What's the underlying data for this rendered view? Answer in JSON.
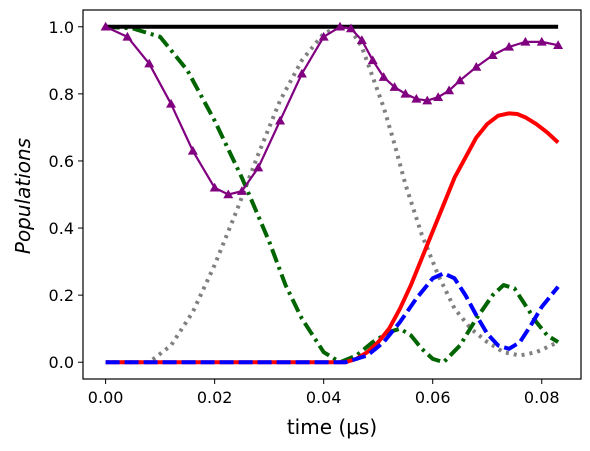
{
  "chart_data": {
    "type": "line",
    "title": "",
    "xlabel": "time (μs)",
    "ylabel": "Populations",
    "xlim": [
      -0.00415,
      0.0872
    ],
    "ylim": [
      -0.05,
      1.05
    ],
    "xticks": [
      "0.00",
      "0.02",
      "0.04",
      "0.06",
      "0.08"
    ],
    "xtick_values": [
      0.0,
      0.02,
      0.04,
      0.06,
      0.08
    ],
    "yticks": [
      "0.0",
      "0.2",
      "0.4",
      "0.6",
      "0.8",
      "1.0"
    ],
    "ytick_values": [
      0.0,
      0.2,
      0.4,
      0.6,
      0.8,
      1.0
    ],
    "grid": false,
    "legend": false,
    "series": [
      {
        "color": "#000000",
        "style": "solid",
        "x": [
          0.0,
          0.083
        ],
        "y": [
          1.0,
          1.0
        ]
      },
      {
        "color": "#ff0000",
        "style": "solid",
        "x": [
          0.0,
          0.044,
          0.046,
          0.048,
          0.05,
          0.052,
          0.054,
          0.056,
          0.058,
          0.06,
          0.062,
          0.064,
          0.066,
          0.068,
          0.07,
          0.072,
          0.074,
          0.0755,
          0.077,
          0.079,
          0.081,
          0.083
        ],
        "y": [
          0.0,
          0.0,
          0.01,
          0.03,
          0.06,
          0.1,
          0.16,
          0.23,
          0.31,
          0.39,
          0.47,
          0.55,
          0.61,
          0.67,
          0.71,
          0.735,
          0.742,
          0.74,
          0.73,
          0.71,
          0.685,
          0.655
        ]
      },
      {
        "color": "#0000ff",
        "style": "dashed",
        "x": [
          0.0,
          0.044,
          0.048,
          0.051,
          0.054,
          0.057,
          0.06,
          0.062,
          0.064,
          0.066,
          0.068,
          0.07,
          0.072,
          0.074,
          0.076,
          0.078,
          0.08,
          0.083
        ],
        "y": [
          0.0,
          0.0,
          0.02,
          0.06,
          0.12,
          0.19,
          0.25,
          0.265,
          0.25,
          0.2,
          0.14,
          0.085,
          0.05,
          0.04,
          0.06,
          0.11,
          0.165,
          0.225
        ]
      },
      {
        "color": "#006400",
        "style": "dashdot",
        "x": [
          0.0,
          0.005,
          0.01,
          0.015,
          0.02,
          0.025,
          0.03,
          0.033,
          0.036,
          0.04,
          0.043,
          0.046,
          0.049,
          0.052,
          0.054,
          0.056,
          0.058,
          0.06,
          0.062,
          0.065,
          0.068,
          0.071,
          0.073,
          0.075,
          0.077,
          0.079,
          0.081,
          0.083
        ],
        "y": [
          1.0,
          0.995,
          0.97,
          0.87,
          0.72,
          0.55,
          0.36,
          0.23,
          0.13,
          0.03,
          0.0,
          0.02,
          0.06,
          0.09,
          0.1,
          0.08,
          0.04,
          0.01,
          0.0,
          0.05,
          0.13,
          0.2,
          0.23,
          0.22,
          0.17,
          0.12,
          0.08,
          0.06
        ]
      },
      {
        "color": "#808080",
        "style": "dotted",
        "x": [
          0.0,
          0.008,
          0.012,
          0.016,
          0.02,
          0.024,
          0.028,
          0.032,
          0.036,
          0.04,
          0.043,
          0.045,
          0.047,
          0.049,
          0.051,
          0.053,
          0.055,
          0.058,
          0.061,
          0.064,
          0.067,
          0.07,
          0.073,
          0.076,
          0.079,
          0.083
        ],
        "y": [
          0.0,
          0.0,
          0.05,
          0.15,
          0.29,
          0.45,
          0.62,
          0.78,
          0.9,
          0.98,
          1.0,
          0.99,
          0.94,
          0.85,
          0.76,
          0.65,
          0.53,
          0.38,
          0.26,
          0.16,
          0.1,
          0.06,
          0.03,
          0.02,
          0.03,
          0.06
        ]
      },
      {
        "color": "#800080",
        "style": "solid",
        "marker": "triangle",
        "x": [
          0.0,
          0.004,
          0.008,
          0.012,
          0.016,
          0.02,
          0.0225,
          0.025,
          0.028,
          0.032,
          0.036,
          0.04,
          0.043,
          0.045,
          0.047,
          0.049,
          0.051,
          0.053,
          0.055,
          0.057,
          0.059,
          0.061,
          0.063,
          0.065,
          0.068,
          0.071,
          0.074,
          0.077,
          0.08,
          0.083
        ],
        "y": [
          1.0,
          0.97,
          0.89,
          0.77,
          0.63,
          0.52,
          0.5,
          0.51,
          0.58,
          0.72,
          0.86,
          0.97,
          1.0,
          0.995,
          0.96,
          0.9,
          0.85,
          0.82,
          0.8,
          0.785,
          0.78,
          0.79,
          0.81,
          0.84,
          0.88,
          0.915,
          0.94,
          0.955,
          0.955,
          0.945
        ]
      }
    ]
  }
}
